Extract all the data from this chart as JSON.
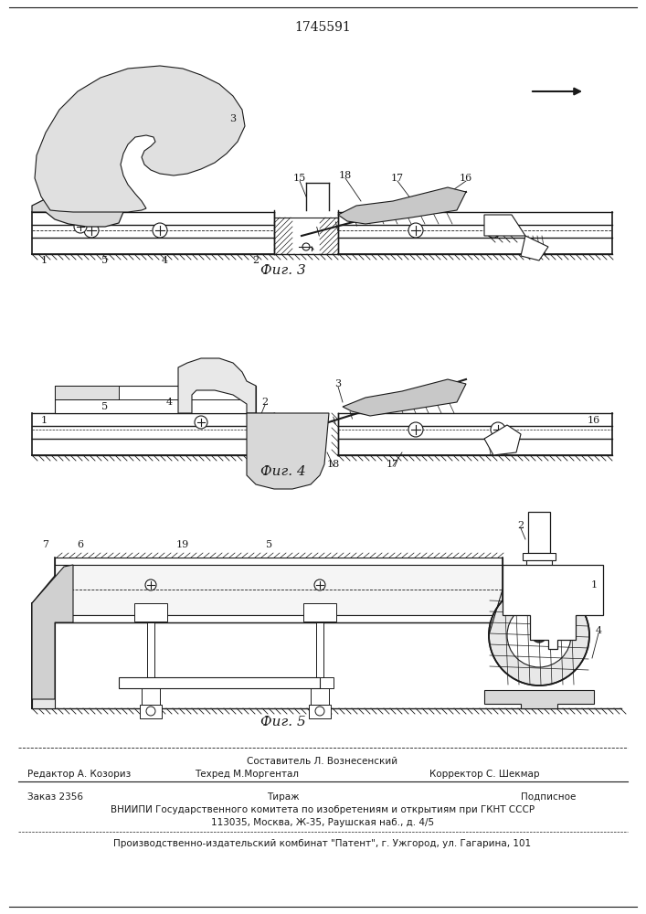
{
  "patent_number": "1745591",
  "fig3_label": "Фиг. 3",
  "fig4_label": "Фиг. 4",
  "fig5_label": "Фиг. 5",
  "footer_line1_center": "Составитель Л. Вознесенский",
  "footer_line2_left": "Редактор А. Козориз",
  "footer_line2_center": "Техред М.Моргентал",
  "footer_line2_right": "Корректор С. Шекмар",
  "footer_line3_left": "Заказ 2356",
  "footer_line3_center": "Тираж",
  "footer_line3_right": "Подписное",
  "footer_line4": "ВНИИПИ Государственного комитета по изобретениям и открытиям при ГКНТ СССР",
  "footer_line5": "113035, Москва, Ж-35, Раушская наб., д. 4/5",
  "footer_line6": "Производственно-издательский комбинат \"Патент\", г. Ужгород, ул. Гагарина, 101",
  "bg_color": "#ffffff",
  "line_color": "#1a1a1a",
  "fig_width": 7.07,
  "fig_height": 10.0,
  "dpi": 100
}
